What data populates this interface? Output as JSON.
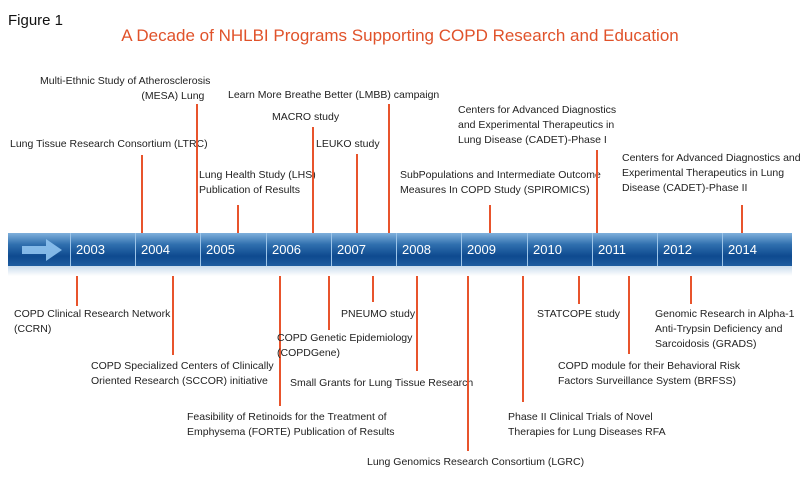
{
  "figure_label": "Figure 1",
  "title": "A Decade of NHLBI Programs Supporting COPD Research and Education",
  "timeline": {
    "years": [
      "2003",
      "2004",
      "2005",
      "2006",
      "2007",
      "2008",
      "2009",
      "2010",
      "2011",
      "2012",
      "2014"
    ],
    "events_above": [
      {
        "line1": "Lung Tissue Research Consortium (LTRC)",
        "line2": ""
      },
      {
        "line1": "Multi-Ethnic Study of Atherosclerosis",
        "line2": "(MESA) Lung"
      },
      {
        "line1": "Lung Health Study (LHS)",
        "line2": "Publication of Results"
      },
      {
        "line1": "MACRO study",
        "line2": ""
      },
      {
        "line1": "Learn More Breathe Better (LMBB) campaign",
        "line2": ""
      },
      {
        "line1": "LEUKO study",
        "line2": ""
      },
      {
        "line1": "SubPopulations and Intermediate Outcome",
        "line2": "Measures In COPD Study (SPIROMICS)"
      },
      {
        "line1": "Centers for Advanced Diagnostics",
        "line2": "and Experimental Therapeutics in",
        "line3": "Lung Disease (CADET)-Phase I"
      },
      {
        "line1": "Centers for Advanced Diagnostics and",
        "line2": "Experimental Therapeutics in Lung",
        "line3": "Disease (CADET)-Phase II"
      }
    ],
    "events_below": [
      {
        "line1": "COPD Clinical Research Network",
        "line2": "(CCRN)"
      },
      {
        "line1": "COPD Specialized Centers of Clinically",
        "line2": "Oriented Research (SCCOR) initiative"
      },
      {
        "line1": "Feasibility of Retinoids for the Treatment of",
        "line2": "Emphysema (FORTE) Publication of Results"
      },
      {
        "line1": "COPD Genetic Epidemiology",
        "line2": "(COPDGene)"
      },
      {
        "line1": "PNEUMO study",
        "line2": ""
      },
      {
        "line1": "Small Grants for Lung Tissue Research",
        "line2": ""
      },
      {
        "line1": "Lung Genomics Research Consortium (LGRC)",
        "line2": ""
      },
      {
        "line1": "Phase II Clinical Trials of Novel",
        "line2": "Therapies for Lung Diseases RFA"
      },
      {
        "line1": "STATCOPE study",
        "line2": ""
      },
      {
        "line1": "COPD module for their Behavioral Risk",
        "line2": "Factors Surveillance System (BRFSS)"
      },
      {
        "line1": "Genomic Research in Alpha-1",
        "line2": "Anti-Trypsin Deficiency and",
        "line3": "Sarcoidosis (GRADS)"
      }
    ]
  },
  "colors": {
    "title": "#e0522a",
    "connector": "#e8542c",
    "bar": "#0e4a8f"
  }
}
